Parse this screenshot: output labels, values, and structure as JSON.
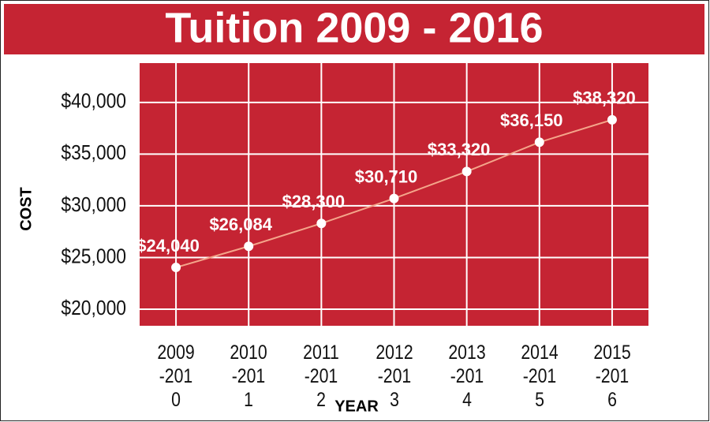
{
  "chart_data": {
    "type": "line",
    "title": "Tuition 2009 - 2016",
    "x_label": "YEAR",
    "y_label": "COST",
    "categories": [
      "2009-2010",
      "2010-2011",
      "2011-2012",
      "2012-2013",
      "2013-2014",
      "2014-2015",
      "2015-2016"
    ],
    "values": [
      24040,
      26084,
      28300,
      30710,
      33320,
      36150,
      38320
    ],
    "value_labels": [
      "$24,040",
      "$26,084",
      "$28,300",
      "$30,710",
      "$33,320",
      "$36,150",
      "$38,320"
    ],
    "color": "#f4a58a",
    "ylim": [
      18400,
      43800
    ],
    "yticks": [
      {
        "value": 20000,
        "label": "$20,000"
      },
      {
        "value": 25000,
        "label": "$25,000"
      },
      {
        "value": 30000,
        "label": "$30,000"
      },
      {
        "value": 35000,
        "label": "$35,000"
      },
      {
        "value": 40000,
        "label": "$40,000"
      }
    ],
    "grid": true
  }
}
